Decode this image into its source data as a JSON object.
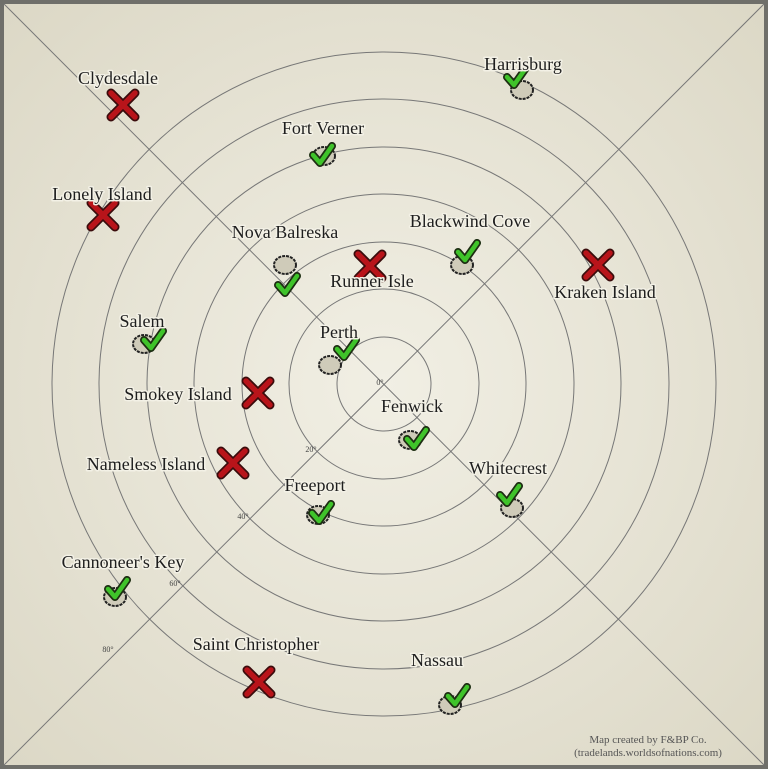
{
  "map": {
    "rings": [
      "0°",
      "20°",
      "40°",
      "60°",
      "80°"
    ],
    "locations": [
      {
        "name": "Clydesdale",
        "status": "unavailable"
      },
      {
        "name": "Harrisburg",
        "status": "available"
      },
      {
        "name": "Fort Verner",
        "status": "available"
      },
      {
        "name": "Lonely Island",
        "status": "unavailable"
      },
      {
        "name": "Nova Balreska",
        "status": "available"
      },
      {
        "name": "Blackwind Cove",
        "status": "available"
      },
      {
        "name": "Runner Isle",
        "status": "unavailable"
      },
      {
        "name": "Kraken Island",
        "status": "unavailable"
      },
      {
        "name": "Salem",
        "status": "available"
      },
      {
        "name": "Perth",
        "status": "available"
      },
      {
        "name": "Smokey Island",
        "status": "unavailable"
      },
      {
        "name": "Fenwick",
        "status": "available"
      },
      {
        "name": "Nameless Island",
        "status": "unavailable"
      },
      {
        "name": "Whitecrest",
        "status": "available"
      },
      {
        "name": "Freeport",
        "status": "available"
      },
      {
        "name": "Cannoneer's Key",
        "status": "available"
      },
      {
        "name": "Saint Christopher",
        "status": "unavailable"
      },
      {
        "name": "Nassau",
        "status": "available"
      }
    ],
    "credit": [
      "Map created by F&BP Co.",
      "(tradelands.worldsofnations.com)"
    ]
  }
}
